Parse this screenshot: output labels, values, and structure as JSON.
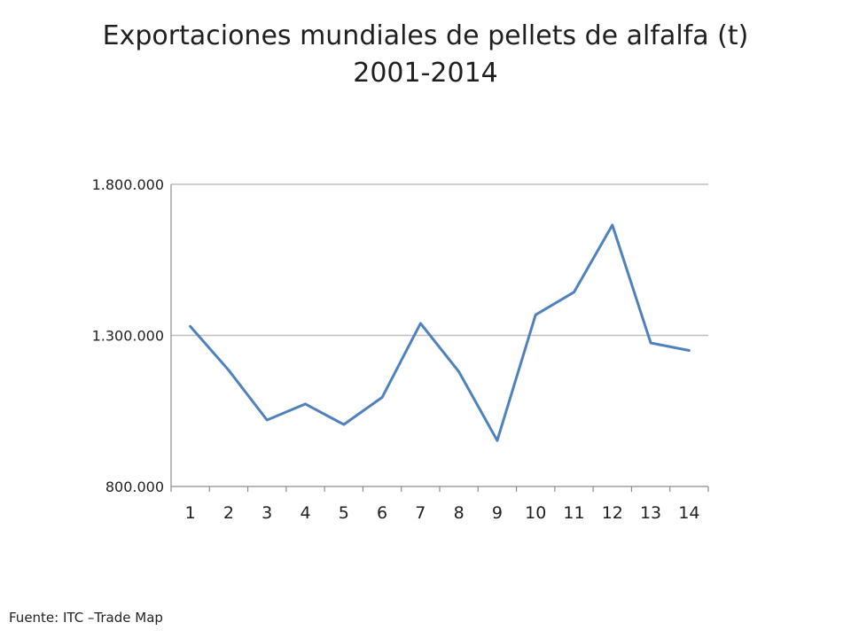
{
  "chart_data": {
    "type": "line",
    "title": "Exportaciones mundiales de pellets de alfalfa (t)",
    "subtitle": "2001-2014",
    "xlabel": "",
    "ylabel": "",
    "categories": [
      "1",
      "2",
      "3",
      "4",
      "5",
      "6",
      "7",
      "8",
      "9",
      "10",
      "11",
      "12",
      "13",
      "14"
    ],
    "series": [
      {
        "values": [
          1330000,
          1185000,
          1020000,
          1073000,
          1005000,
          1095000,
          1340000,
          1180000,
          952000,
          1368000,
          1443000,
          1665000,
          1275000,
          1250000
        ],
        "color": "#4f81bd"
      }
    ],
    "ylim": [
      800000,
      1800000
    ],
    "yticks": [
      800000,
      1300000,
      1800000
    ],
    "ytick_labels": [
      "800.000",
      "1.300.000",
      "1.800.000"
    ],
    "grid": true,
    "legend": "none"
  },
  "footer": {
    "source": "Fuente: ITC –Trade Map"
  }
}
